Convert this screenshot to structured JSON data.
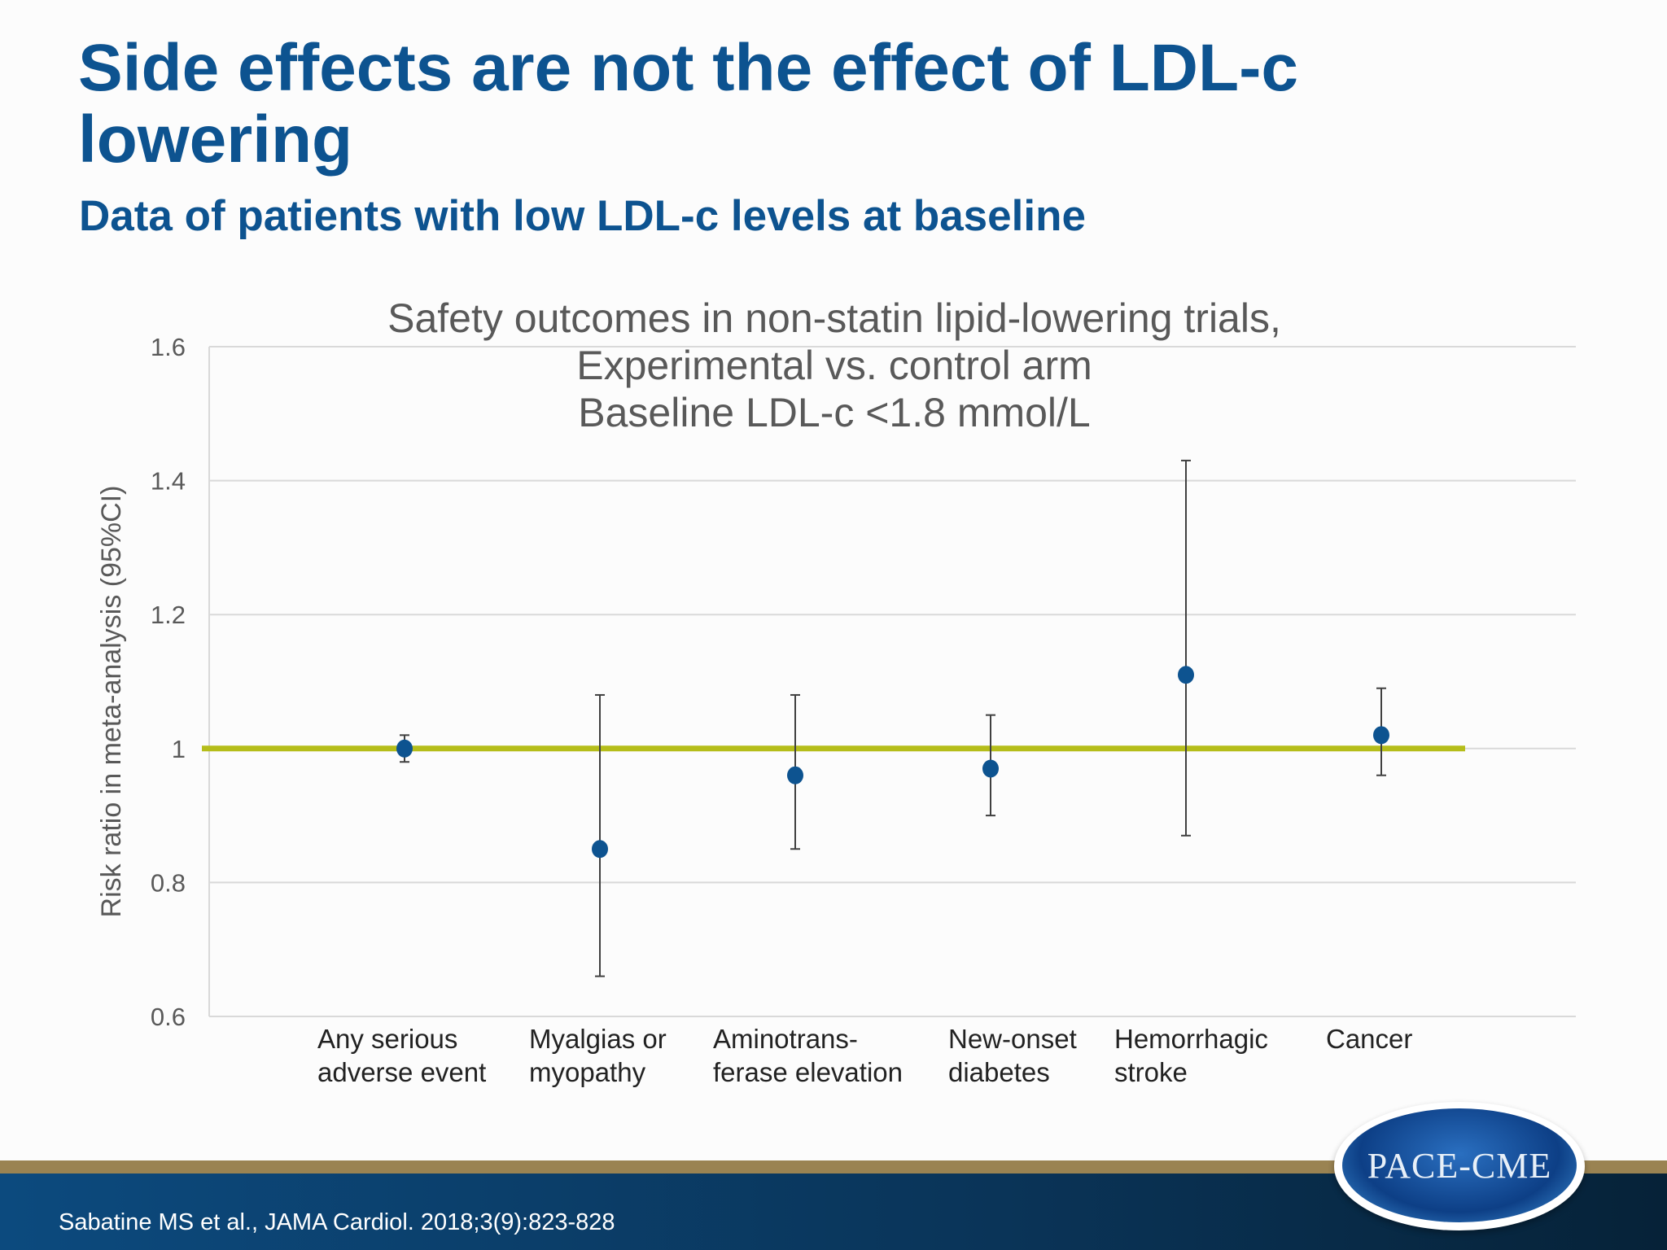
{
  "slide": {
    "title": "Side effects are not the effect of LDL-c lowering",
    "subtitle": "Data of patients with low LDL-c levels at baseline",
    "citation": "Sabatine MS et al., JAMA Cardiol. 2018;3(9):823-828",
    "logo_text": "PACE-CME"
  },
  "colors": {
    "title": "#0d5390",
    "marker": "#0d5390",
    "reference_line": "#b5bd1a",
    "footer": "#0a3458",
    "footer_band": "#9a8352"
  },
  "chart_data": {
    "type": "scatter",
    "title_lines": [
      "Safety outcomes in non-statin lipid-lowering trials,",
      "Experimental vs. control arm",
      "Baseline LDL-c <1.8 mmol/L"
    ],
    "ylabel": "Risk ratio in meta-analysis (95%CI)",
    "ylim": [
      0.6,
      1.6
    ],
    "yticks": [
      "0.6",
      "0.8",
      "1",
      "1.2",
      "1.4",
      "1.6"
    ],
    "grid": true,
    "reference_line": 1,
    "categories": [
      [
        "Any serious",
        "adverse event"
      ],
      [
        "Myalgias or",
        "myopathy"
      ],
      [
        "Aminotrans-",
        "ferase elevation"
      ],
      [
        "New-onset",
        "diabetes"
      ],
      [
        "Hemorrhagic",
        "stroke"
      ],
      [
        "Cancer"
      ]
    ],
    "values": [
      1.0,
      0.85,
      0.96,
      0.97,
      1.11,
      1.02
    ],
    "ci_low": [
      0.98,
      0.66,
      0.85,
      0.9,
      0.87,
      0.96
    ],
    "ci_high": [
      1.02,
      1.08,
      1.08,
      1.05,
      1.43,
      1.09
    ]
  }
}
